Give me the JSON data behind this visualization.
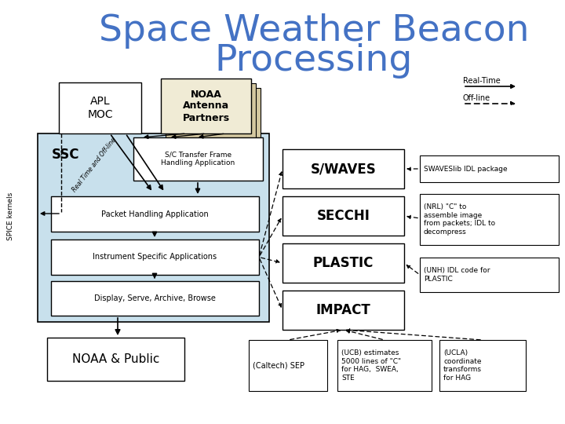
{
  "title_line1": "Space Weather Beacon",
  "title_line2": "Processing",
  "title_color": "#4472C4",
  "title_fontsize": 34,
  "bg_color": "#ffffff",
  "diagonal_label": "Real Time and Off-line",
  "spice_label": "SPICE kernels"
}
